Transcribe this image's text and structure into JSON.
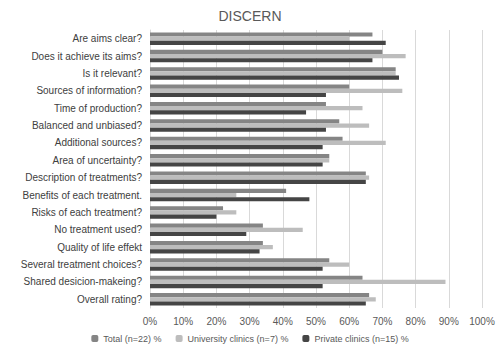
{
  "chart_data": {
    "type": "bar",
    "title": "DISCERN",
    "orientation": "horizontal",
    "categories": [
      "Are aims clear?",
      "Does it achieve its aims?",
      "Is it relevant?",
      "Sources of information?",
      "Time of production?",
      "Balanced and unbiased?",
      "Additional sources?",
      "Area of uncertainty?",
      "Description of treatments?",
      "Benefits of each treatment.",
      "Risks of each treatment?",
      "No treatment used?",
      "Quality of life effekt",
      "Several treatment choices?",
      "Shared desicion-makeing?",
      "Overall rating?"
    ],
    "series": [
      {
        "name": "Total (n=22) %",
        "color": "#858585",
        "values": [
          67,
          70,
          74,
          60,
          53,
          57,
          58,
          54,
          65,
          41,
          22,
          34,
          34,
          54,
          64,
          66
        ]
      },
      {
        "name": "University clinics (n=7) %",
        "color": "#bdbdbd",
        "values": [
          60,
          77,
          74,
          76,
          64,
          66,
          71,
          54,
          66,
          26,
          26,
          46,
          37,
          60,
          89,
          68
        ]
      },
      {
        "name": "Private clinics (n=15) %",
        "color": "#454545",
        "values": [
          71,
          67,
          75,
          53,
          47,
          53,
          52,
          52,
          65,
          48,
          20,
          29,
          33,
          52,
          52,
          65
        ]
      }
    ],
    "xlim": [
      0,
      100
    ],
    "xticks": [
      {
        "value": 0,
        "label": "0%"
      },
      {
        "value": 10,
        "label": "10%"
      },
      {
        "value": 20,
        "label": "20%"
      },
      {
        "value": 30,
        "label": "30%"
      },
      {
        "value": 40,
        "label": "40%"
      },
      {
        "value": 50,
        "label": "50%"
      },
      {
        "value": 60,
        "label": "60%"
      },
      {
        "value": 70,
        "label": "70%"
      },
      {
        "value": 80,
        "label": "80%"
      },
      {
        "value": 90,
        "label": "90%"
      },
      {
        "value": 100,
        "label": "100%"
      }
    ],
    "grid": true,
    "legend": "bottom"
  }
}
